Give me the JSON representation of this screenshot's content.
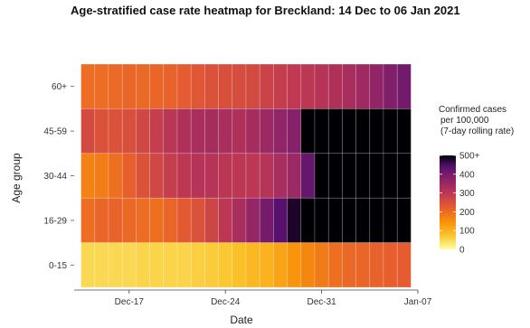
{
  "chart_data": {
    "type": "heatmap",
    "title": "Age-stratified case rate heatmap for Breckland: 14 Dec to 06 Jan 2021",
    "xlabel": "Date",
    "ylabel": "Age group",
    "x_ticks": [
      "Dec-17",
      "Dec-24",
      "Dec-31",
      "Jan-07"
    ],
    "y_categories": [
      "0-15",
      "16-29",
      "30-44",
      "45-59",
      "60+"
    ],
    "dates": [
      "2020-12-14",
      "2020-12-15",
      "2020-12-16",
      "2020-12-17",
      "2020-12-18",
      "2020-12-19",
      "2020-12-20",
      "2020-12-21",
      "2020-12-22",
      "2020-12-23",
      "2020-12-24",
      "2020-12-25",
      "2020-12-26",
      "2020-12-27",
      "2020-12-28",
      "2020-12-29",
      "2020-12-30",
      "2020-12-31",
      "2021-01-01",
      "2021-01-02",
      "2021-01-03",
      "2021-01-04",
      "2021-01-05",
      "2021-01-06"
    ],
    "values": {
      "60+": [
        200,
        200,
        205,
        210,
        205,
        210,
        215,
        225,
        235,
        245,
        250,
        255,
        260,
        275,
        285,
        295,
        300,
        310,
        320,
        330,
        345,
        365,
        385,
        405
      ],
      "45-59": [
        260,
        245,
        245,
        250,
        265,
        285,
        305,
        320,
        330,
        335,
        330,
        320,
        335,
        350,
        365,
        380,
        520,
        560,
        600,
        620,
        640,
        650,
        660,
        660
      ],
      "30-44": [
        170,
        175,
        195,
        220,
        245,
        265,
        285,
        300,
        310,
        310,
        305,
        300,
        300,
        310,
        330,
        350,
        420,
        500,
        540,
        560,
        580,
        590,
        600,
        600
      ],
      "16-29": [
        200,
        210,
        215,
        205,
        200,
        195,
        210,
        230,
        245,
        270,
        300,
        330,
        360,
        400,
        440,
        480,
        520,
        540,
        560,
        580,
        600,
        610,
        620,
        620
      ],
      "0-15": [
        50,
        50,
        50,
        50,
        55,
        55,
        55,
        55,
        60,
        65,
        70,
        80,
        90,
        100,
        120,
        140,
        160,
        180,
        195,
        205,
        210,
        215,
        220,
        225
      ]
    },
    "colorbar": {
      "title": [
        "Confirmed cases",
        "per 100,000",
        "(7-day rolling rate)"
      ],
      "ticks": [
        "0",
        "100",
        "200",
        "300",
        "400",
        "500+"
      ],
      "min": 0,
      "max": 500
    }
  }
}
